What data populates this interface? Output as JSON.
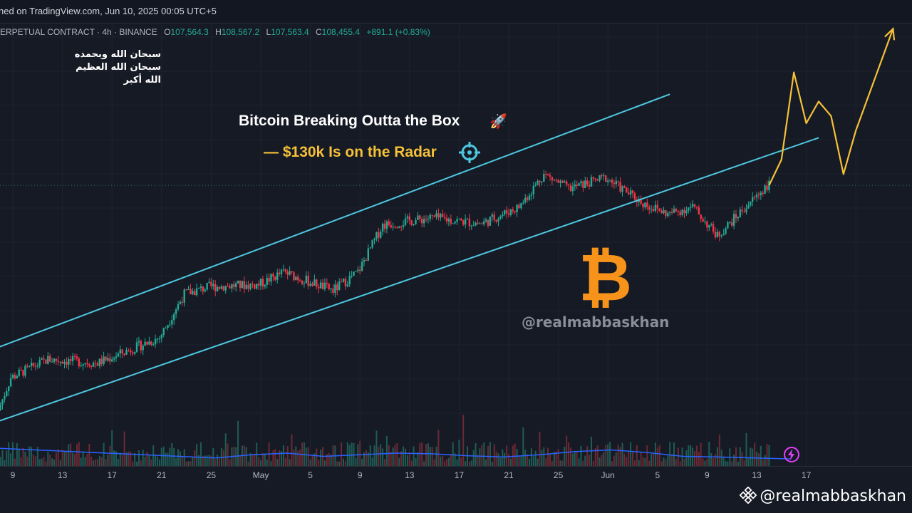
{
  "header": {
    "published_text": "hed on TradingView.com, Jun 10, 2025 00:05 UTC+5",
    "symbol_text": "ERPETUAL CONTRACT · 4h · BINANCE",
    "ohlc": {
      "o_label": "O",
      "o_value": "107,564.3",
      "h_label": "H",
      "h_value": "108,567.2",
      "l_label": "L",
      "l_value": "107,563.4",
      "c_label": "C",
      "c_value": "108,455.4",
      "change": "+891.1 (+0.83%)"
    }
  },
  "annotations": {
    "arabic_line1": "سبحان الله وبحمده",
    "arabic_line2": "سبحان الله العظيم",
    "arabic_line3": "الله أكبر",
    "headline": "Bitcoin Breaking Outta the Box",
    "subline": "— $130k Is on the Radar",
    "rocket_icon": "🚀",
    "crosshair_icon": "crosshair-icon",
    "btc_symbol": "₿",
    "watermark": "@realmabbaskhan"
  },
  "footer": {
    "handle": "@realmabbaskhan",
    "logo_icon": "binance-icon"
  },
  "colors": {
    "background": "#161a25",
    "up": "#22ab94",
    "down": "#f23645",
    "channel": "#4ec8e0",
    "projection": "#f6c137",
    "volume_ma": "#2962ff",
    "bitcoin": "#f7931a"
  },
  "chart_data": {
    "type": "candlestick",
    "title": "",
    "x_ticks": [
      "9",
      "13",
      "17",
      "21",
      "25",
      "May",
      "5",
      "9",
      "13",
      "17",
      "21",
      "25",
      "Jun",
      "5",
      "9",
      "13",
      "17"
    ],
    "price_path": [
      {
        "date": "2025-04-08",
        "price": 77500
      },
      {
        "date": "2025-04-09",
        "price": 82000
      },
      {
        "date": "2025-04-12",
        "price": 84500
      },
      {
        "date": "2025-04-16",
        "price": 84000
      },
      {
        "date": "2025-04-21",
        "price": 87500
      },
      {
        "date": "2025-04-23",
        "price": 93500
      },
      {
        "date": "2025-04-25",
        "price": 94500
      },
      {
        "date": "2025-04-29",
        "price": 94800
      },
      {
        "date": "2025-05-01",
        "price": 96500
      },
      {
        "date": "2025-05-05",
        "price": 94000
      },
      {
        "date": "2025-05-07",
        "price": 96500
      },
      {
        "date": "2025-05-09",
        "price": 103000
      },
      {
        "date": "2025-05-13",
        "price": 104000
      },
      {
        "date": "2025-05-17",
        "price": 103200
      },
      {
        "date": "2025-05-20",
        "price": 105500
      },
      {
        "date": "2025-05-22",
        "price": 110000
      },
      {
        "date": "2025-05-24",
        "price": 108000
      },
      {
        "date": "2025-05-27",
        "price": 109500
      },
      {
        "date": "2025-05-30",
        "price": 106000
      },
      {
        "date": "2025-06-01",
        "price": 104500
      },
      {
        "date": "2025-06-03",
        "price": 105500
      },
      {
        "date": "2025-06-05",
        "price": 101500
      },
      {
        "date": "2025-06-07",
        "price": 105000
      },
      {
        "date": "2025-06-09",
        "price": 108455
      }
    ],
    "projection_path": [
      {
        "date": "2025-06-09",
        "price": 108455
      },
      {
        "date": "2025-06-10",
        "price": 112000
      },
      {
        "date": "2025-06-11",
        "price": 124000
      },
      {
        "date": "2025-06-12",
        "price": 117000
      },
      {
        "date": "2025-06-13",
        "price": 120000
      },
      {
        "date": "2025-06-14",
        "price": 118000
      },
      {
        "date": "2025-06-15",
        "price": 110000
      },
      {
        "date": "2025-06-16",
        "price": 116000
      },
      {
        "date": "2025-06-19",
        "price": 130000
      }
    ],
    "channel": {
      "upper": [
        {
          "date": "2025-04-06",
          "price": 85000
        },
        {
          "date": "2025-06-01",
          "price": 121000
        }
      ],
      "lower": [
        {
          "date": "2025-04-07",
          "price": 75500
        },
        {
          "date": "2025-06-13",
          "price": 115000
        }
      ]
    },
    "volume_ma_relative": [
      0.55,
      0.5,
      0.45,
      0.4,
      0.35,
      0.3,
      0.25,
      0.35,
      0.4,
      0.3,
      0.35,
      0.4,
      0.38,
      0.32,
      0.28,
      0.35,
      0.45,
      0.5,
      0.42,
      0.3,
      0.28,
      0.25,
      0.22
    ],
    "grid": true,
    "legend": "none"
  }
}
